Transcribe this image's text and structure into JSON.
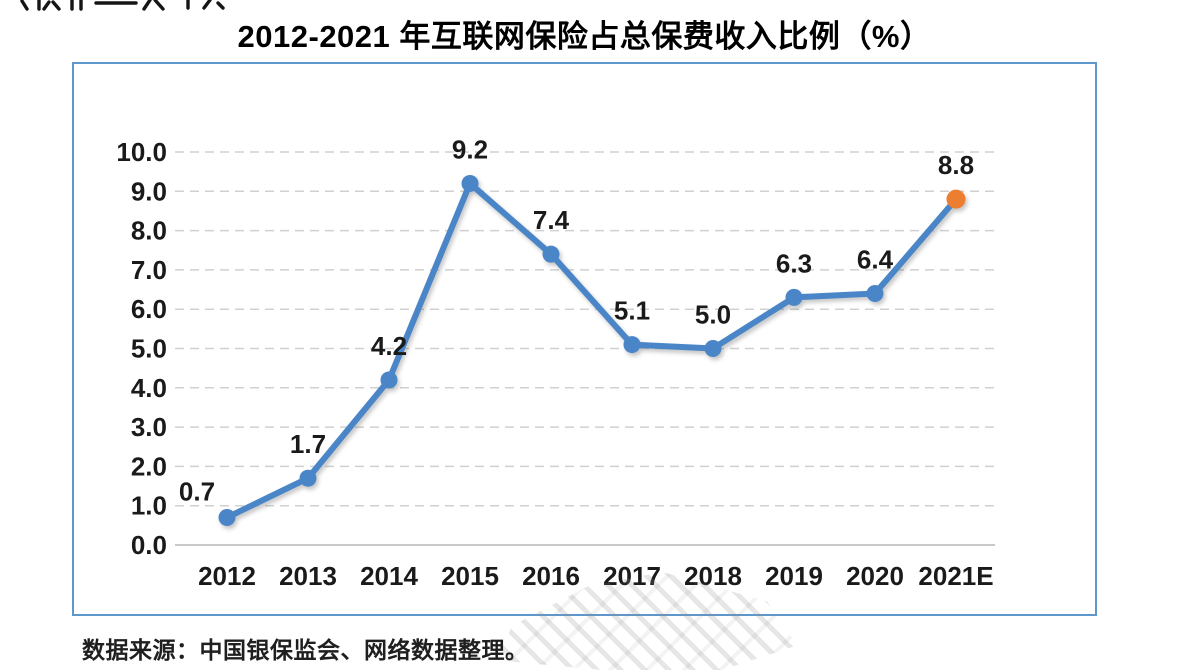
{
  "chart_data": {
    "type": "line",
    "title": "2012-2021 年互联网保险占总保费收入比例（%）",
    "categories": [
      "2012",
      "2013",
      "2014",
      "2015",
      "2016",
      "2017",
      "2018",
      "2019",
      "2020",
      "2021E"
    ],
    "values": [
      0.7,
      1.7,
      4.2,
      9.2,
      7.4,
      5.1,
      5.0,
      6.3,
      6.4,
      8.8
    ],
    "data_labels": [
      "0.7",
      "1.7",
      "4.2",
      "9.2",
      "7.4",
      "5.1",
      "5.0",
      "6.3",
      "6.4",
      "8.8"
    ],
    "ylim": [
      0,
      10
    ],
    "ytick_step": 1,
    "ytick_labels": [
      "0.0",
      "1.0",
      "2.0",
      "3.0",
      "4.0",
      "5.0",
      "6.0",
      "7.0",
      "8.0",
      "9.0",
      "10.0"
    ],
    "xlabel": "",
    "ylabel": "",
    "grid": "horizontal-dashed",
    "legend": "none",
    "colors": {
      "line": "#4a86c7",
      "marker": "#4a86c7",
      "last_marker": "#ed7d31",
      "grid": "#d0d0d0",
      "axis_line": "#b7b7b7",
      "frame": "#5e97cb",
      "text": "#1a1a1a"
    },
    "label_offset": {
      "dy": -34,
      "first_dx": -30,
      "first_dy": 8
    }
  },
  "footer": {
    "source_note": "数据来源：中国银保监会、网络数据整理。"
  }
}
